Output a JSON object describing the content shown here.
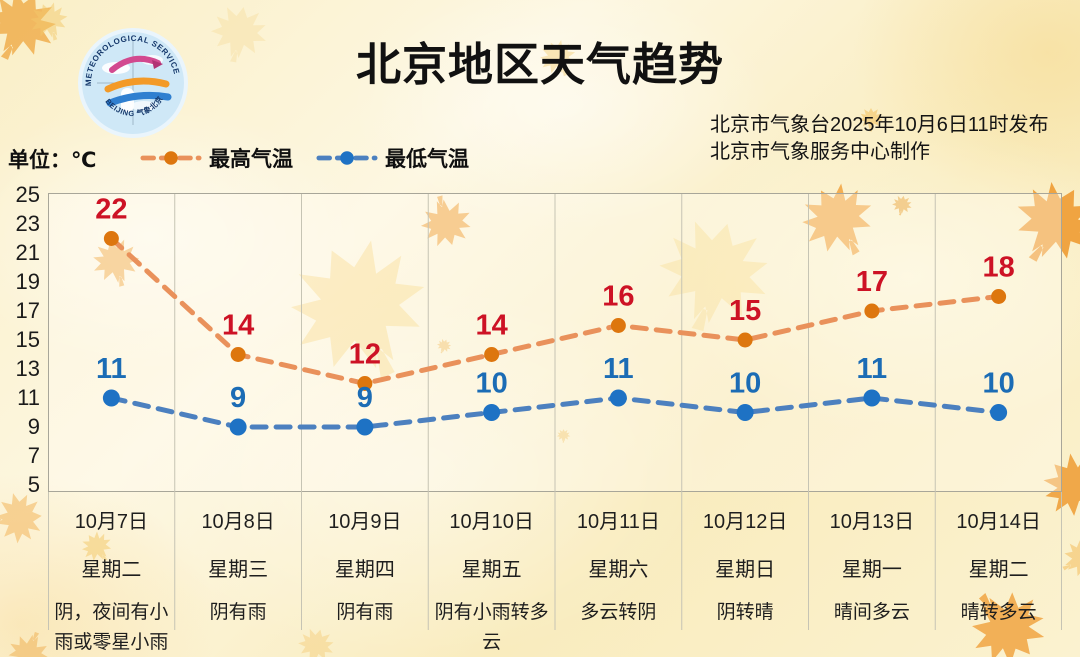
{
  "header": {
    "title": "北京地区天气趋势",
    "issuer_line1": "北京市气象台2025年10月6日11时发布",
    "issuer_line2": "北京市气象服务中心制作",
    "unit_label": "单位：℃",
    "logo": {
      "text_top": "METEOROLOGICAL SERVICE",
      "text_bottom": "BEIJING 气象北京"
    }
  },
  "legend": [
    {
      "label": "最高气温",
      "line_color": "#E9915B",
      "dot_color": "#DD760E",
      "value_color": "#CD1225"
    },
    {
      "label": "最低气温",
      "line_color": "#4C80BF",
      "dot_color": "#1E72C4",
      "value_color": "#1B6CB5"
    }
  ],
  "colors": {
    "background": "#F9EFC9",
    "plot_fill": "rgba(255,253,244,0.35)",
    "plot_border": "#a8a699",
    "grid": "#c6c4b4",
    "text": "#1e1e1e"
  },
  "chart_data": {
    "type": "line",
    "title": "北京地区天气趋势",
    "ylabel": "单位：℃",
    "ylim": [
      5,
      25
    ],
    "yticks": [
      25,
      23,
      21,
      19,
      17,
      15,
      13,
      11,
      9,
      7,
      5
    ],
    "grid": "vertical-only",
    "line_style": "dashed",
    "legend_position": "top-left",
    "categories": [
      "10月7日",
      "10月8日",
      "10月9日",
      "10月10日",
      "10月11日",
      "10月12日",
      "10月13日",
      "10月14日"
    ],
    "weekdays": [
      "星期二",
      "星期三",
      "星期四",
      "星期五",
      "星期六",
      "星期日",
      "星期一",
      "星期二"
    ],
    "weather": [
      "阴，夜间有小雨或零星小雨",
      "阴有雨",
      "阴有雨",
      "阴有小雨转多云",
      "多云转阴",
      "阴转晴",
      "晴间多云",
      "晴转多云"
    ],
    "series": [
      {
        "name": "最高气温",
        "values": [
          22,
          14,
          12,
          14,
          16,
          15,
          17,
          18
        ]
      },
      {
        "name": "最低气温",
        "values": [
          11,
          9,
          9,
          10,
          11,
          10,
          11,
          10
        ]
      }
    ]
  }
}
